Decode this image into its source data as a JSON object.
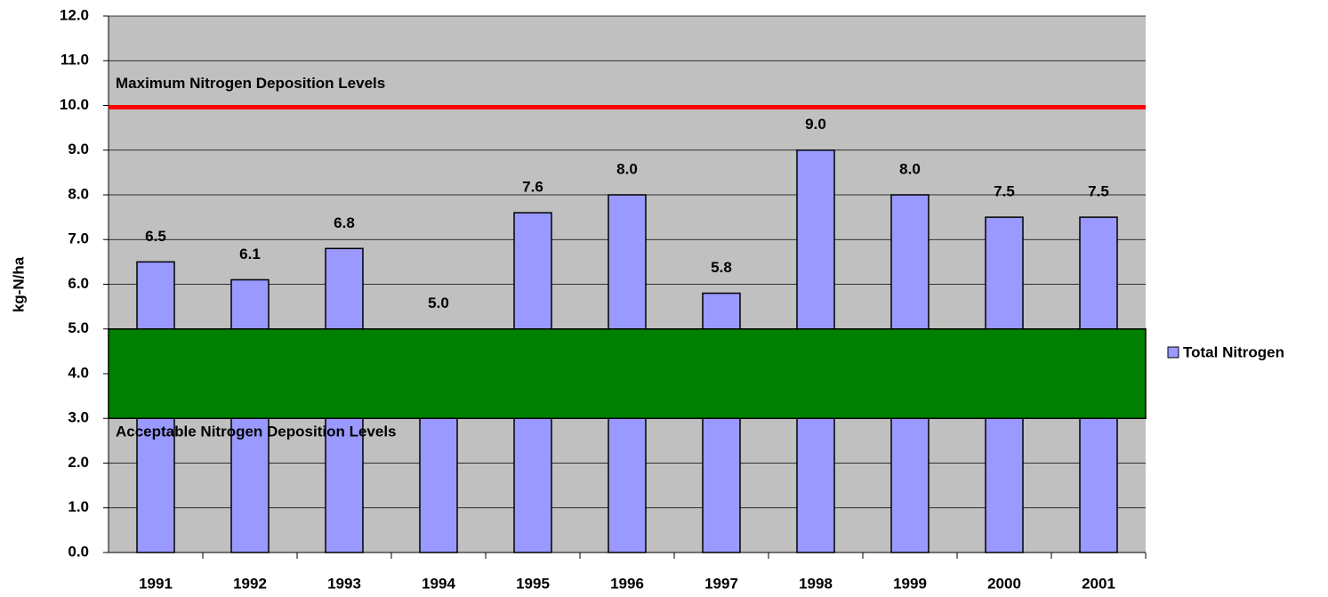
{
  "chart_data": {
    "type": "bar",
    "y_label": "kg-N/ha",
    "categories": [
      "1991",
      "1992",
      "1993",
      "1994",
      "1995",
      "1996",
      "1997",
      "1998",
      "1999",
      "2000",
      "2001"
    ],
    "series": [
      {
        "name": "Total Nitrogen",
        "color": "#9999ff",
        "values": [
          6.5,
          6.1,
          6.8,
          5.0,
          7.6,
          8.0,
          5.8,
          9.0,
          8.0,
          7.5,
          7.5
        ],
        "value_labels": [
          "6.5",
          "6.1",
          "6.8",
          "5.0",
          "7.6",
          "8.0",
          "5.8",
          "9.0",
          "8.0",
          "7.5",
          "7.5"
        ]
      }
    ],
    "ylim": [
      0,
      12
    ],
    "yticks": [
      {
        "value": 0,
        "label": "0.0"
      },
      {
        "value": 1,
        "label": "1.0"
      },
      {
        "value": 2,
        "label": "2.0"
      },
      {
        "value": 3,
        "label": "3.0"
      },
      {
        "value": 4,
        "label": "4.0"
      },
      {
        "value": 5,
        "label": "5.0"
      },
      {
        "value": 6,
        "label": "6.0"
      },
      {
        "value": 7,
        "label": "7.0"
      },
      {
        "value": 8,
        "label": "8.0"
      },
      {
        "value": 9,
        "label": "9.0"
      },
      {
        "value": 10,
        "label": "10.0"
      },
      {
        "value": 11,
        "label": "11.0"
      },
      {
        "value": 12,
        "label": "12.0"
      }
    ],
    "grid": true,
    "legend": "right",
    "reference_line": {
      "value": 10,
      "label": "Maximum Nitrogen Deposition Levels",
      "color": "#ff0000"
    },
    "reference_band": {
      "from": 3,
      "to": 5,
      "label": "Acceptable Nitrogen Deposition Levels",
      "color": "#008000"
    }
  }
}
